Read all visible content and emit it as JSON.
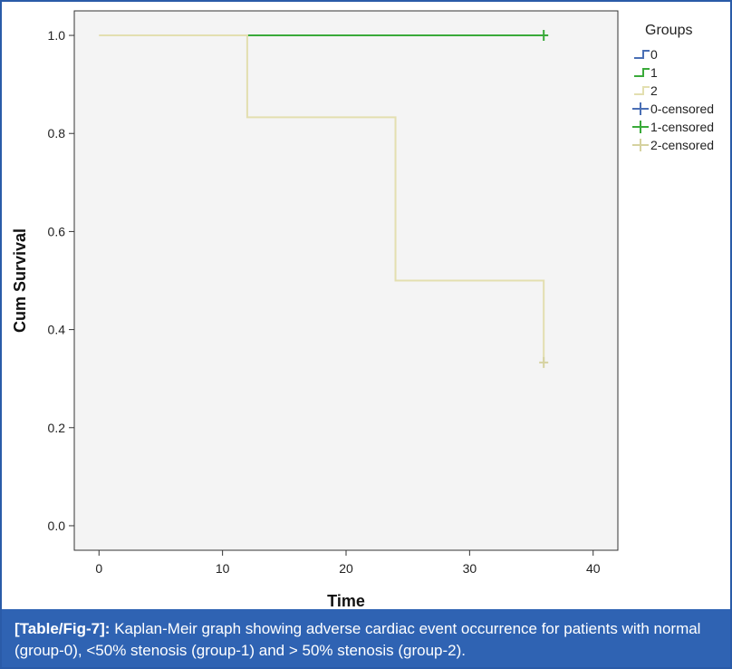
{
  "chart_data": {
    "type": "line",
    "subtype": "kaplan-meier step",
    "xlabel": "Time",
    "ylabel": "Cum Survival",
    "xlim": [
      -2,
      42
    ],
    "ylim": [
      -0.05,
      1.05
    ],
    "xticks": [
      0,
      10,
      20,
      30,
      40
    ],
    "yticks": [
      0.0,
      0.2,
      0.4,
      0.6,
      0.8,
      1.0
    ],
    "xtick_labels": [
      "0",
      "10",
      "20",
      "30",
      "40"
    ],
    "ytick_labels": [
      "0.0",
      "0.2",
      "0.4",
      "0.6",
      "0.8",
      "1.0"
    ],
    "grid": false,
    "legend_title": "Groups",
    "legend_position": "right",
    "series": [
      {
        "name": "0",
        "color": "#4a6fb5",
        "x": [],
        "y": []
      },
      {
        "name": "1",
        "color": "#3aaa3a",
        "x": [
          12,
          36
        ],
        "y": [
          1.0,
          1.0
        ]
      },
      {
        "name": "2",
        "color": "#e3dfb0",
        "x": [
          0,
          12,
          24,
          36
        ],
        "y": [
          1.0,
          0.833,
          0.5,
          0.333
        ]
      }
    ],
    "censored": [
      {
        "name": "0-censored",
        "color": "#4a6fb5",
        "x": [],
        "y": []
      },
      {
        "name": "1-censored",
        "color": "#3aaa3a",
        "x": [
          36
        ],
        "y": [
          1.0
        ]
      },
      {
        "name": "2-censored",
        "color": "#d6d2a0",
        "x": [
          36
        ],
        "y": [
          0.333
        ]
      }
    ]
  },
  "caption": {
    "label": "[Table/Fig-7]:",
    "text": "Kaplan-Meir graph showing adverse cardiac event occurrence for patients with normal (group-0), <50% stenosis (group-1) and > 50% stenosis (group-2)."
  }
}
